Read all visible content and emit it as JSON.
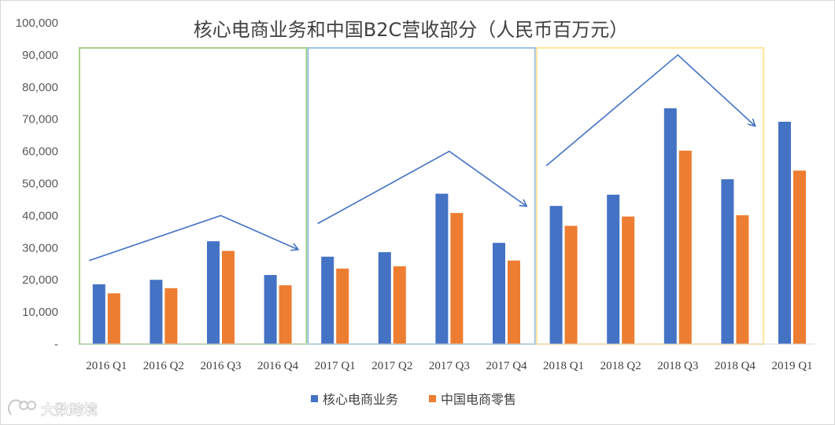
{
  "chart_data": {
    "type": "bar",
    "title": "核心电商业务和中国B2C营收部分（人民币百万元）",
    "categories": [
      "2016 Q1",
      "2016 Q2",
      "2016 Q3",
      "2016 Q4",
      "2017 Q1",
      "2017 Q2",
      "2017 Q3",
      "2017 Q4",
      "2018 Q1",
      "2018 Q2",
      "2018 Q3",
      "2018 Q4",
      "2019 Q1"
    ],
    "series": [
      {
        "name": "核心电商业务",
        "color": "#4472C4",
        "values": [
          18600,
          20000,
          32000,
          21500,
          27200,
          28600,
          46800,
          31500,
          43000,
          46500,
          73400,
          51300,
          69200
        ]
      },
      {
        "name": "中国电商零售",
        "color": "#ED7D31",
        "values": [
          15800,
          17400,
          29000,
          18300,
          23500,
          24200,
          40800,
          26000,
          36800,
          39700,
          60200,
          40100,
          54000
        ]
      }
    ],
    "y_ticks": [
      "-",
      "10,000",
      "20,000",
      "30,000",
      "40,000",
      "50,000",
      "60,000",
      "70,000",
      "80,000",
      "90,000",
      "100,000"
    ],
    "ylim": [
      0,
      100000
    ],
    "legend_position": "bottom",
    "year_groups": [
      {
        "year": "2016",
        "border_color": "#A9D18E"
      },
      {
        "year": "2017",
        "border_color": "#9DC3E6"
      },
      {
        "year": "2018",
        "border_color": "#FFE699"
      }
    ],
    "trend_arrows": [
      {
        "from": [
          "2016 Q1",
          26000
        ],
        "peak": [
          "2016 Q3",
          40000
        ],
        "to": [
          "2016 Q4",
          29500
        ]
      },
      {
        "from": [
          "2017 Q1",
          37500
        ],
        "peak": [
          "2017 Q3",
          60000
        ],
        "to": [
          "2017 Q4",
          43000
        ]
      },
      {
        "from": [
          "2018 Q1",
          55500
        ],
        "peak": [
          "2018 Q3",
          90000
        ],
        "to": [
          "2018 Q4",
          68000
        ]
      }
    ],
    "arrow_color": "#4472C4"
  },
  "watermark": {
    "text": "大数跨境"
  }
}
